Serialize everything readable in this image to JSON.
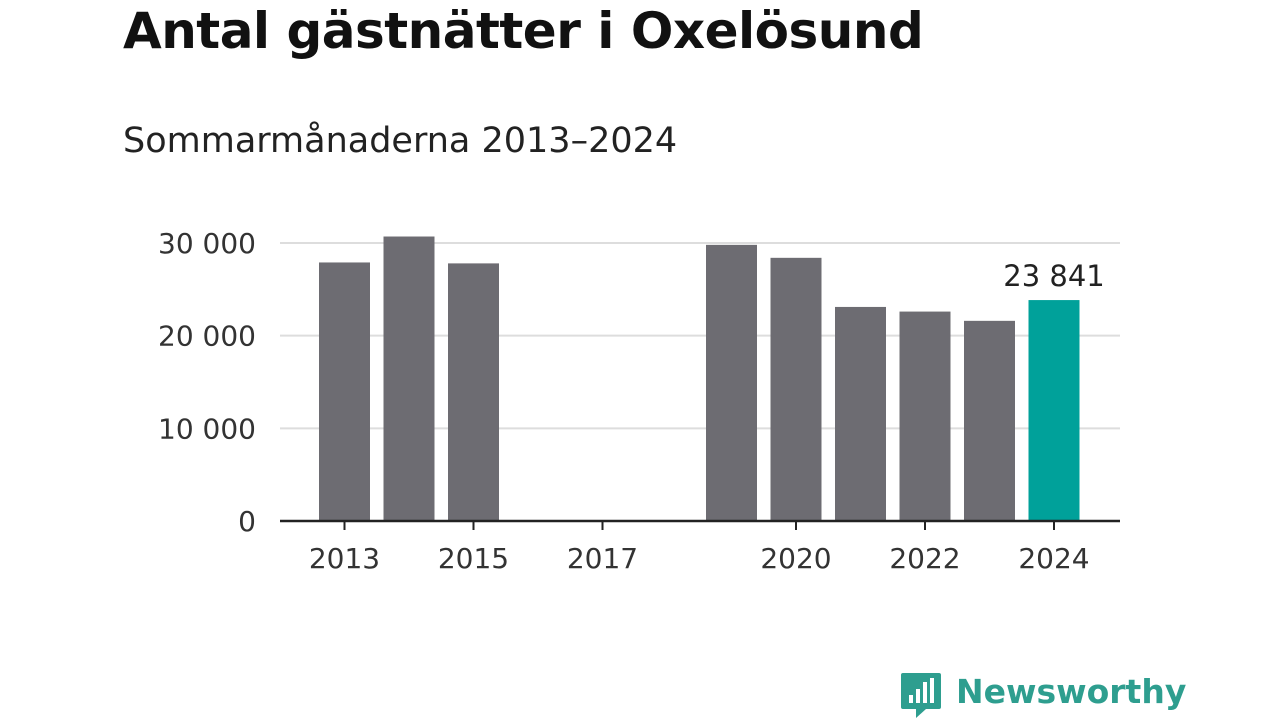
{
  "title": "Antal gästnätter i Oxelösund",
  "subtitle": "Sommarmånaderna 2013–2024",
  "colors": {
    "bar": "#6d6c72",
    "highlight": "#00a19a",
    "grid": "#dddddd",
    "axis": "#222222",
    "brand": "#2e9e8f"
  },
  "brand": {
    "name": "Newsworthy",
    "icon": "newsworthy-logo-icon"
  },
  "chart_data": {
    "type": "bar",
    "categories": [
      "2013",
      "2014",
      "2015",
      "2016",
      "2017",
      "2018",
      "2019",
      "2020",
      "2021",
      "2022",
      "2023",
      "2024"
    ],
    "values": [
      27900,
      30700,
      27800,
      null,
      null,
      null,
      29800,
      28400,
      23100,
      22600,
      21600,
      23841
    ],
    "highlight_index": 11,
    "data_labels": [
      {
        "category": "2024",
        "text": "23 841"
      }
    ],
    "xtick_labels": [
      "2013",
      "2015",
      "2017",
      "2020",
      "2022",
      "2024"
    ],
    "ytick_labels": [
      {
        "value": 0,
        "label": "0"
      },
      {
        "value": 10000,
        "label": "10 000"
      },
      {
        "value": 20000,
        "label": "20 000"
      },
      {
        "value": 30000,
        "label": "30 000"
      }
    ],
    "ylim": [
      0,
      30000
    ],
    "grid": true,
    "legend": "none"
  }
}
